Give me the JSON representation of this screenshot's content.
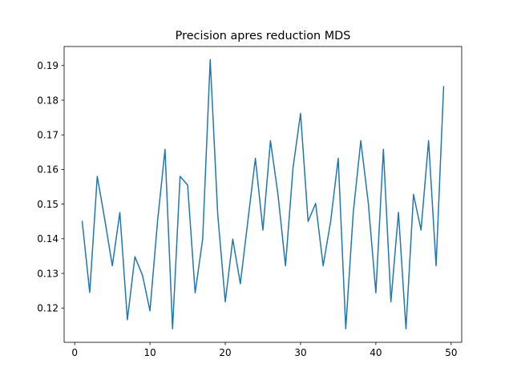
{
  "chart_data": {
    "type": "line",
    "title": "Precision apres reduction MDS",
    "xlabel": "",
    "ylabel": "",
    "xlim": [
      -1.4,
      51.4
    ],
    "ylim": [
      0.1101,
      0.1955
    ],
    "xticks": [
      0,
      10,
      20,
      30,
      40,
      50
    ],
    "xtick_labels": [
      "0",
      "10",
      "20",
      "30",
      "40",
      "50"
    ],
    "yticks": [
      0.12,
      0.13,
      0.14,
      0.15,
      0.16,
      0.17,
      0.18,
      0.19
    ],
    "ytick_labels": [
      "0.12",
      "0.13",
      "0.14",
      "0.15",
      "0.16",
      "0.17",
      "0.18",
      "0.19"
    ],
    "grid": false,
    "legend": "none",
    "series": [
      {
        "color": "#1f77b4",
        "x": [
          1,
          2,
          3,
          4,
          5,
          6,
          7,
          8,
          9,
          10,
          11,
          12,
          13,
          14,
          15,
          16,
          17,
          18,
          19,
          20,
          21,
          22,
          23,
          24,
          25,
          26,
          27,
          28,
          29,
          30,
          31,
          32,
          33,
          34,
          35,
          36,
          37,
          38,
          39,
          40,
          41,
          42,
          43,
          44,
          45,
          46,
          47,
          48,
          49
        ],
        "y": [
          0.145,
          0.1245,
          0.158,
          0.1455,
          0.1322,
          0.1476,
          0.1166,
          0.1348,
          0.1295,
          0.1192,
          0.1449,
          0.1658,
          0.114,
          0.158,
          0.1555,
          0.1244,
          0.1399,
          0.1917,
          0.147,
          0.1218,
          0.1399,
          0.127,
          0.1451,
          0.1632,
          0.1425,
          0.1683,
          0.1528,
          0.1322,
          0.1605,
          0.1762,
          0.145,
          0.1502,
          0.1322,
          0.1451,
          0.1632,
          0.114,
          0.1476,
          0.1683,
          0.1502,
          0.1244,
          0.1658,
          0.1218,
          0.1476,
          0.114,
          0.1528,
          0.1425,
          0.1683,
          0.1322,
          0.1839
        ]
      }
    ]
  }
}
